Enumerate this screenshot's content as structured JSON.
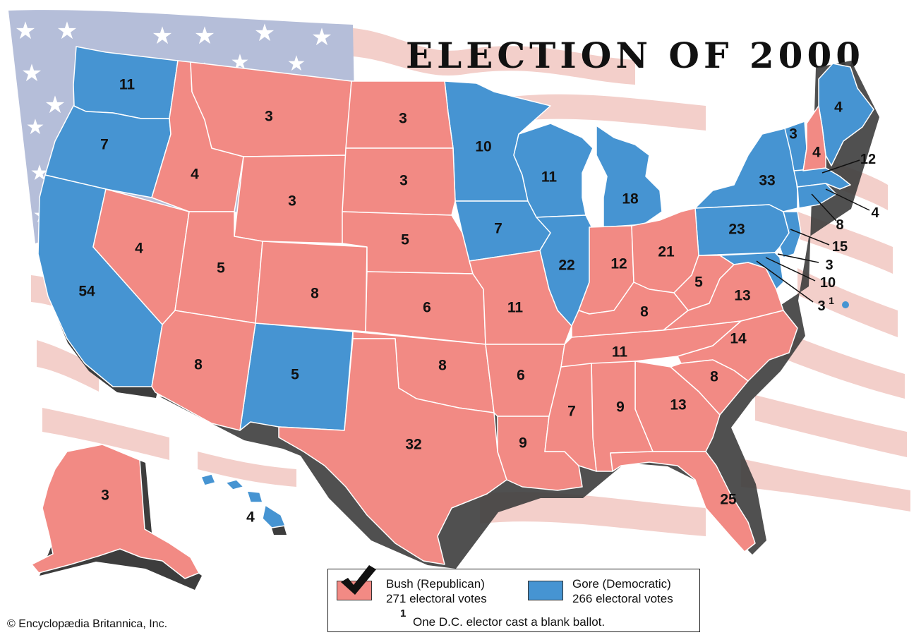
{
  "title": "ELECTION OF 2000",
  "colors": {
    "republican": "#f28a84",
    "democratic": "#4694d2",
    "shadow": "#3d3d3d",
    "flag_canton": "#b5bed9",
    "flag_stripe": "#f3cfca"
  },
  "legend": {
    "republican": {
      "candidate": "Bush (Republican)",
      "votes": "271 electoral votes",
      "winner_mark": "check-mark-icon"
    },
    "democratic": {
      "candidate": "Gore (Democratic)",
      "votes": "266 electoral votes"
    },
    "footnote_marker": "1",
    "footnote": "One D.C. elector cast a blank ballot."
  },
  "credit": "© Encyclopædia Britannica, Inc.",
  "states": {
    "wa": "11",
    "or": "7",
    "ca": "54",
    "id": "4",
    "nv": "4",
    "mt": "3",
    "wy": "3",
    "ut": "5",
    "az": "8",
    "co": "8",
    "nm": "5",
    "nd": "3",
    "sd": "3",
    "ne": "5",
    "ks": "6",
    "ok": "8",
    "tx": "32",
    "mn": "10",
    "ia": "7",
    "mo": "11",
    "ar": "6",
    "la": "9",
    "wi": "11",
    "il": "22",
    "mi": "18",
    "in": "12",
    "oh": "21",
    "ky": "8",
    "tn": "11",
    "ms": "7",
    "al": "9",
    "ga": "13",
    "fl": "25",
    "sc": "8",
    "nc": "14",
    "va": "13",
    "wv": "5",
    "pa": "23",
    "ny": "33",
    "vt": "3",
    "nh": "4",
    "me": "4",
    "ak": "3",
    "hi": "4"
  },
  "callouts": {
    "ma": "12",
    "ri": "4",
    "ct": "8",
    "nj": "15",
    "de": "3",
    "md": "10",
    "dc": "3",
    "dc_sup": "1"
  }
}
